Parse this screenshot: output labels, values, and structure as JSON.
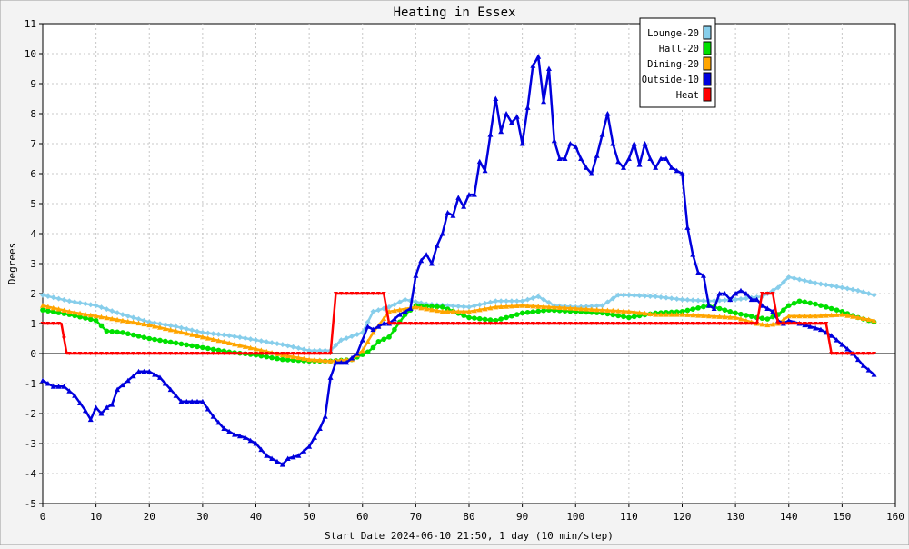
{
  "chart_data": {
    "type": "line",
    "title": "Heating in Essex",
    "xlabel": "Start Date 2024-06-10 21:50, 1 day (10 min/step)",
    "ylabel": "Degrees",
    "xlim": [
      0,
      160
    ],
    "ylim": [
      -5,
      11
    ],
    "xticks": [
      0,
      10,
      20,
      30,
      40,
      50,
      60,
      70,
      80,
      90,
      100,
      110,
      120,
      130,
      140,
      150,
      160
    ],
    "yticks": [
      -5,
      -4,
      -3,
      -2,
      -1,
      0,
      1,
      2,
      3,
      4,
      5,
      6,
      7,
      8,
      9,
      10,
      11
    ],
    "grid": true,
    "legend_position": "top-right",
    "colors": {
      "background": "#f3f3f3",
      "plot_background": "#ffffff",
      "grid": "#c8c8c8",
      "zero_line": "#000000"
    },
    "series": [
      {
        "name": "Lounge-20",
        "color": "#87ceeb",
        "x": [
          0,
          5,
          10,
          15,
          20,
          25,
          30,
          35,
          40,
          45,
          50,
          54,
          56,
          60,
          62,
          65,
          68,
          72,
          80,
          85,
          90,
          93,
          96,
          100,
          105,
          108,
          110,
          115,
          120,
          125,
          130,
          135,
          138,
          140,
          145,
          150,
          153,
          156
        ],
        "values": [
          1.95,
          1.75,
          1.6,
          1.3,
          1.05,
          0.9,
          0.7,
          0.6,
          0.45,
          0.3,
          0.1,
          0.1,
          0.45,
          0.7,
          1.4,
          1.55,
          1.8,
          1.65,
          1.55,
          1.75,
          1.75,
          1.9,
          1.6,
          1.55,
          1.6,
          1.95,
          1.95,
          1.9,
          1.8,
          1.75,
          1.8,
          1.9,
          2.2,
          2.55,
          2.35,
          2.2,
          2.1,
          1.95
        ]
      },
      {
        "name": "Hall-20",
        "color": "#00e000",
        "x": [
          0,
          5,
          10,
          12,
          15,
          20,
          25,
          30,
          35,
          40,
          45,
          50,
          54,
          58,
          61,
          62,
          63,
          65,
          68,
          70,
          75,
          80,
          85,
          90,
          95,
          100,
          105,
          110,
          115,
          120,
          125,
          130,
          134,
          136,
          138,
          140,
          142,
          145,
          150,
          153,
          156
        ],
        "values": [
          1.45,
          1.3,
          1.1,
          0.75,
          0.7,
          0.5,
          0.35,
          0.2,
          0.05,
          -0.05,
          -0.2,
          -0.25,
          -0.25,
          -0.2,
          0.05,
          0.2,
          0.4,
          0.55,
          1.3,
          1.6,
          1.55,
          1.2,
          1.1,
          1.35,
          1.45,
          1.4,
          1.35,
          1.2,
          1.35,
          1.4,
          1.6,
          1.35,
          1.2,
          1.15,
          1.3,
          1.6,
          1.75,
          1.65,
          1.4,
          1.2,
          1.05
        ]
      },
      {
        "name": "Dining-20",
        "color": "#ffa500",
        "x": [
          0,
          5,
          10,
          15,
          20,
          25,
          30,
          35,
          40,
          45,
          50,
          54,
          58,
          60,
          62,
          65,
          70,
          75,
          80,
          85,
          90,
          95,
          100,
          105,
          110,
          115,
          120,
          125,
          130,
          134,
          136,
          138,
          140,
          145,
          150,
          153,
          156
        ],
        "values": [
          1.6,
          1.4,
          1.25,
          1.1,
          0.95,
          0.75,
          0.55,
          0.35,
          0.15,
          -0.05,
          -0.2,
          -0.25,
          -0.2,
          0.1,
          0.7,
          1.4,
          1.55,
          1.4,
          1.4,
          1.55,
          1.6,
          1.55,
          1.5,
          1.45,
          1.4,
          1.3,
          1.3,
          1.25,
          1.2,
          1.0,
          0.95,
          1.0,
          1.25,
          1.25,
          1.3,
          1.2,
          1.1
        ]
      },
      {
        "name": "Outside-10",
        "color": "#0000dd",
        "x": [
          0,
          2,
          4,
          6,
          8,
          9,
          10,
          11,
          12,
          13,
          14,
          16,
          18,
          20,
          22,
          24,
          26,
          28,
          30,
          32,
          34,
          36,
          38,
          40,
          42,
          44,
          45,
          46,
          48,
          50,
          52,
          53,
          54,
          55,
          57,
          59,
          61,
          62,
          63,
          64,
          65,
          67,
          69,
          70,
          71,
          72,
          73,
          74,
          75,
          76,
          77,
          78,
          79,
          80,
          81,
          82,
          83,
          84,
          85,
          86,
          87,
          88,
          89,
          90,
          91,
          92,
          93,
          94,
          95,
          96,
          97,
          98,
          99,
          100,
          101,
          102,
          103,
          104,
          105,
          106,
          107,
          108,
          109,
          110,
          111,
          112,
          113,
          114,
          115,
          116,
          117,
          118,
          119,
          120,
          121,
          122,
          123,
          124,
          125,
          126,
          127,
          128,
          129,
          130,
          131,
          132,
          133,
          134,
          135,
          136,
          137,
          138,
          139,
          140,
          142,
          144,
          146,
          148,
          150,
          152,
          154,
          156
        ],
        "values": [
          -0.9,
          -1.1,
          -1.1,
          -1.4,
          -1.9,
          -2.2,
          -1.8,
          -2.0,
          -1.8,
          -1.7,
          -1.2,
          -0.9,
          -0.6,
          -0.6,
          -0.8,
          -1.2,
          -1.6,
          -1.6,
          -1.6,
          -2.1,
          -2.5,
          -2.7,
          -2.8,
          -3.0,
          -3.4,
          -3.6,
          -3.7,
          -3.5,
          -3.4,
          -3.1,
          -2.5,
          -2.1,
          -0.8,
          -0.3,
          -0.3,
          0.0,
          0.9,
          0.8,
          0.9,
          1.0,
          1.0,
          1.3,
          1.5,
          2.6,
          3.1,
          3.3,
          3.0,
          3.6,
          4.0,
          4.7,
          4.6,
          5.2,
          4.9,
          5.3,
          5.3,
          6.4,
          6.1,
          7.3,
          8.5,
          7.4,
          8.0,
          7.7,
          7.9,
          7.0,
          8.2,
          9.6,
          9.9,
          8.4,
          9.5,
          7.1,
          6.5,
          6.5,
          7.0,
          6.9,
          6.5,
          6.2,
          6.0,
          6.6,
          7.3,
          8.0,
          7.0,
          6.4,
          6.2,
          6.5,
          7.0,
          6.3,
          7.0,
          6.5,
          6.2,
          6.5,
          6.5,
          6.2,
          6.1,
          6.0,
          4.2,
          3.3,
          2.7,
          2.6,
          1.6,
          1.5,
          2.0,
          2.0,
          1.8,
          2.0,
          2.1,
          2.0,
          1.8,
          1.8,
          1.6,
          1.5,
          1.4,
          1.1,
          1.0,
          1.1,
          1.0,
          0.9,
          0.8,
          0.6,
          0.3,
          0.0,
          -0.4,
          -0.7
        ]
      },
      {
        "name": "Heat",
        "color": "#ff0000",
        "x": [
          0,
          3.5,
          4.5,
          54,
          55,
          64,
          65,
          134,
          135,
          137,
          138,
          147,
          148,
          156
        ],
        "values": [
          1,
          1,
          0,
          0,
          2,
          2,
          1,
          1,
          2,
          2,
          1,
          1,
          0,
          0
        ]
      }
    ]
  }
}
